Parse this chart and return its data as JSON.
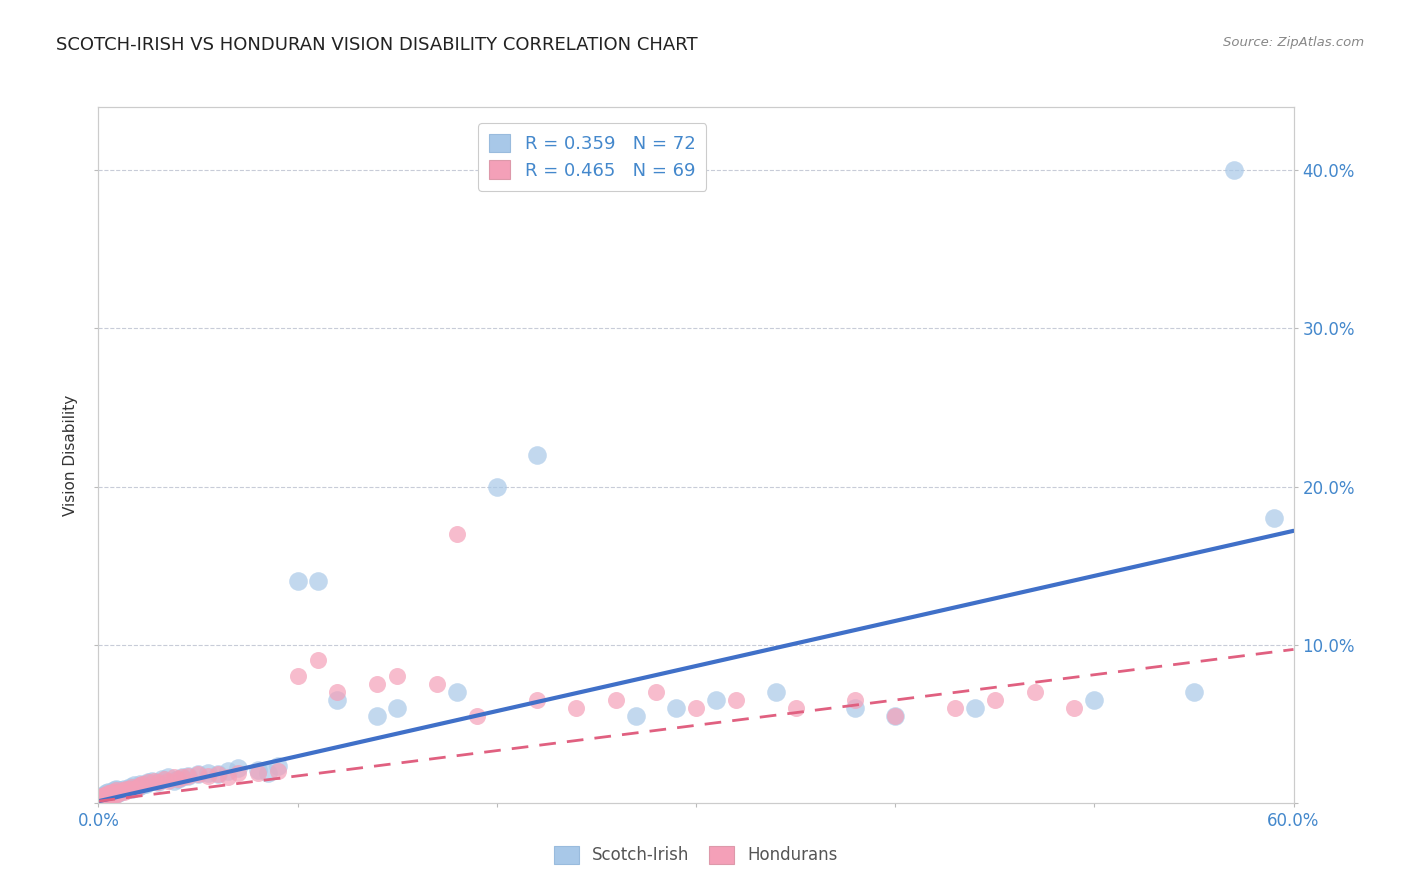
{
  "title": "SCOTCH-IRISH VS HONDURAN VISION DISABILITY CORRELATION CHART",
  "source": "Source: ZipAtlas.com",
  "ylabel": "Vision Disability",
  "xlim": [
    0.0,
    0.6
  ],
  "ylim": [
    0.0,
    0.44
  ],
  "x_tick_positions": [
    0.0,
    0.1,
    0.2,
    0.3,
    0.4,
    0.5,
    0.6
  ],
  "x_tick_labels": [
    "0.0%",
    "",
    "",
    "",
    "",
    "",
    "60.0%"
  ],
  "y_tick_positions": [
    0.0,
    0.1,
    0.2,
    0.3,
    0.4
  ],
  "y_tick_labels_right": [
    "",
    "10.0%",
    "20.0%",
    "30.0%",
    "40.0%"
  ],
  "scotch_irish_R": 0.359,
  "scotch_irish_N": 72,
  "honduran_R": 0.465,
  "honduran_N": 69,
  "scotch_irish_color": "#a8c8e8",
  "honduran_color": "#f4a0b8",
  "scotch_irish_line_color": "#4070c8",
  "honduran_line_color": "#e06080",
  "tick_label_color": "#4488cc",
  "grid_color": "#c8ccd8",
  "background_color": "#ffffff",
  "title_color": "#222222",
  "source_color": "#888888",
  "ylabel_color": "#333333",
  "si_line_intercept": 0.001,
  "si_line_slope": 0.285,
  "ho_line_intercept": 0.001,
  "ho_line_slope": 0.16,
  "scotch_irish_x": [
    0.001,
    0.001,
    0.002,
    0.002,
    0.002,
    0.003,
    0.003,
    0.003,
    0.004,
    0.004,
    0.004,
    0.005,
    0.005,
    0.005,
    0.006,
    0.006,
    0.007,
    0.007,
    0.008,
    0.008,
    0.009,
    0.009,
    0.01,
    0.01,
    0.011,
    0.012,
    0.013,
    0.014,
    0.015,
    0.016,
    0.017,
    0.018,
    0.02,
    0.021,
    0.022,
    0.024,
    0.025,
    0.027,
    0.03,
    0.032,
    0.035,
    0.038,
    0.04,
    0.042,
    0.045,
    0.05,
    0.055,
    0.06,
    0.065,
    0.07,
    0.08,
    0.085,
    0.09,
    0.1,
    0.11,
    0.12,
    0.14,
    0.15,
    0.18,
    0.2,
    0.22,
    0.27,
    0.29,
    0.31,
    0.34,
    0.38,
    0.4,
    0.44,
    0.5,
    0.55,
    0.57,
    0.59
  ],
  "scotch_irish_y": [
    0.002,
    0.003,
    0.002,
    0.003,
    0.004,
    0.002,
    0.003,
    0.005,
    0.003,
    0.004,
    0.006,
    0.003,
    0.005,
    0.007,
    0.004,
    0.006,
    0.005,
    0.007,
    0.005,
    0.008,
    0.006,
    0.009,
    0.006,
    0.008,
    0.007,
    0.008,
    0.009,
    0.008,
    0.009,
    0.01,
    0.009,
    0.011,
    0.01,
    0.012,
    0.011,
    0.012,
    0.013,
    0.014,
    0.013,
    0.015,
    0.016,
    0.014,
    0.015,
    0.016,
    0.017,
    0.018,
    0.019,
    0.018,
    0.02,
    0.022,
    0.021,
    0.019,
    0.023,
    0.14,
    0.14,
    0.065,
    0.055,
    0.06,
    0.07,
    0.2,
    0.22,
    0.055,
    0.06,
    0.065,
    0.07,
    0.06,
    0.055,
    0.06,
    0.065,
    0.07,
    0.4,
    0.18
  ],
  "honduran_x": [
    0.001,
    0.001,
    0.002,
    0.002,
    0.003,
    0.003,
    0.003,
    0.004,
    0.004,
    0.005,
    0.005,
    0.005,
    0.006,
    0.006,
    0.007,
    0.007,
    0.008,
    0.008,
    0.009,
    0.009,
    0.01,
    0.011,
    0.012,
    0.013,
    0.014,
    0.015,
    0.016,
    0.017,
    0.018,
    0.02,
    0.021,
    0.022,
    0.025,
    0.028,
    0.03,
    0.033,
    0.035,
    0.038,
    0.04,
    0.042,
    0.045,
    0.05,
    0.055,
    0.06,
    0.065,
    0.07,
    0.08,
    0.09,
    0.1,
    0.11,
    0.12,
    0.14,
    0.15,
    0.17,
    0.18,
    0.19,
    0.22,
    0.24,
    0.26,
    0.28,
    0.3,
    0.32,
    0.35,
    0.38,
    0.4,
    0.43,
    0.45,
    0.47,
    0.49
  ],
  "honduran_y": [
    0.002,
    0.003,
    0.002,
    0.004,
    0.003,
    0.004,
    0.005,
    0.003,
    0.005,
    0.003,
    0.004,
    0.006,
    0.004,
    0.006,
    0.004,
    0.007,
    0.005,
    0.007,
    0.005,
    0.008,
    0.006,
    0.007,
    0.008,
    0.007,
    0.009,
    0.008,
    0.009,
    0.01,
    0.009,
    0.01,
    0.011,
    0.012,
    0.013,
    0.014,
    0.013,
    0.015,
    0.014,
    0.016,
    0.015,
    0.016,
    0.017,
    0.018,
    0.017,
    0.018,
    0.016,
    0.019,
    0.019,
    0.02,
    0.08,
    0.09,
    0.07,
    0.075,
    0.08,
    0.075,
    0.17,
    0.055,
    0.065,
    0.06,
    0.065,
    0.07,
    0.06,
    0.065,
    0.06,
    0.065,
    0.055,
    0.06,
    0.065,
    0.07,
    0.06
  ]
}
